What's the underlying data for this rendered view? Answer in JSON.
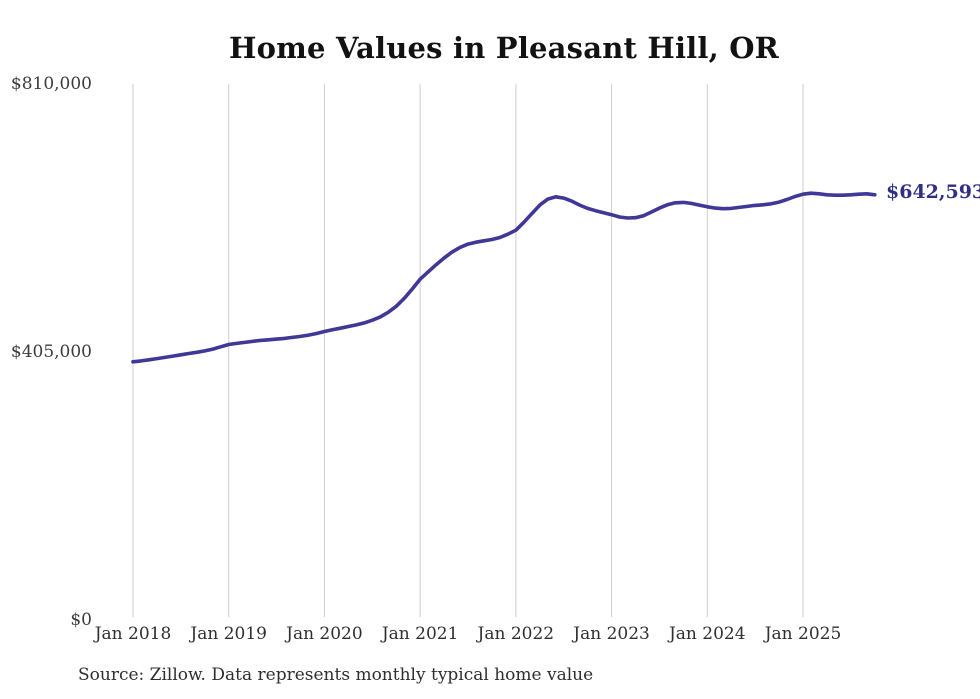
{
  "chart": {
    "title": "Home Values in Pleasant Hill, OR",
    "source": "Source: Zillow. Data represents monthly typical home value",
    "end_label": "$642,593",
    "latest_value": 642593
  },
  "chart_data": {
    "type": "line",
    "title": "Home Values in Pleasant Hill, OR",
    "series_name": "Monthly typical home value",
    "frequency": "monthly",
    "x_start": "Jan 2018",
    "x_end": "Oct 2025",
    "x_tick_labels": [
      "Jan 2018",
      "Jan 2019",
      "Jan 2020",
      "Jan 2021",
      "Jan 2022",
      "Jan 2023",
      "Jan 2024",
      "Jan 2025"
    ],
    "y_tick_labels": [
      "$810,000",
      "$405,000",
      "$0"
    ],
    "y_tick_values": [
      810000,
      405000,
      0
    ],
    "ylim": [
      0,
      810000
    ],
    "grid": "vertical-only",
    "legend": "none",
    "line_color": "#3f3896",
    "grid_color": "#cdcdcd",
    "annotation": {
      "text": "$642,593",
      "color": "#322e85"
    },
    "values": [
      390200,
      391600,
      393200,
      395000,
      396900,
      398800,
      400800,
      402700,
      404600,
      406600,
      409400,
      412800,
      416400,
      418000,
      419500,
      421000,
      422500,
      423500,
      424500,
      425500,
      427000,
      428500,
      430500,
      433000,
      436000,
      438500,
      441000,
      443500,
      446000,
      449000,
      453000,
      458000,
      465000,
      474000,
      486000,
      500000,
      515000,
      526000,
      537000,
      547000,
      556000,
      563000,
      568000,
      571000,
      573000,
      575000,
      578000,
      583000,
      589000,
      601000,
      614000,
      627000,
      636000,
      639500,
      637500,
      633000,
      627000,
      622000,
      618500,
      615500,
      612500,
      609000,
      607500,
      608000,
      611000,
      616500,
      622500,
      627500,
      630500,
      631000,
      629500,
      627000,
      624500,
      622500,
      621500,
      622000,
      623500,
      625000,
      626500,
      627500,
      629000,
      631500,
      635500,
      640000,
      643500,
      645000,
      644000,
      642500,
      642000,
      642000,
      642500,
      643500,
      644000,
      642593
    ]
  }
}
